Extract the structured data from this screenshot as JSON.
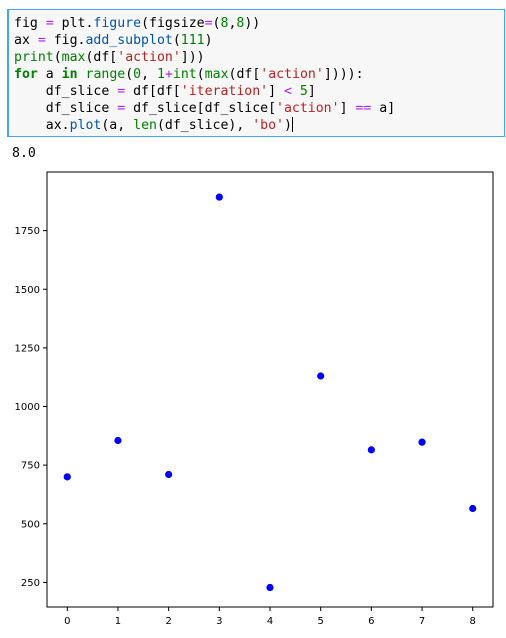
{
  "cell": {
    "lines": [
      [
        {
          "t": "fig "
        },
        {
          "t": "=",
          "c": "op"
        },
        {
          "t": " plt."
        },
        {
          "t": "figure",
          "c": "meth"
        },
        {
          "t": "(figsize"
        },
        {
          "t": "=",
          "c": "op"
        },
        {
          "t": "("
        },
        {
          "t": "8",
          "c": "num"
        },
        {
          "t": ","
        },
        {
          "t": "8",
          "c": "num"
        },
        {
          "t": "))"
        }
      ],
      [
        {
          "t": "ax "
        },
        {
          "t": "=",
          "c": "op"
        },
        {
          "t": " fig."
        },
        {
          "t": "add_subplot",
          "c": "meth"
        },
        {
          "t": "("
        },
        {
          "t": "111",
          "c": "num"
        },
        {
          "t": ")"
        }
      ],
      [
        {
          "t": "print",
          "c": "fn"
        },
        {
          "t": "("
        },
        {
          "t": "max",
          "c": "fn"
        },
        {
          "t": "(df["
        },
        {
          "t": "'action'",
          "c": "str"
        },
        {
          "t": "]))"
        }
      ],
      [
        {
          "t": "for",
          "c": "kw"
        },
        {
          "t": " a "
        },
        {
          "t": "in",
          "c": "kw"
        },
        {
          "t": " "
        },
        {
          "t": "range",
          "c": "fn"
        },
        {
          "t": "("
        },
        {
          "t": "0",
          "c": "num"
        },
        {
          "t": ", "
        },
        {
          "t": "1",
          "c": "num"
        },
        {
          "t": "+",
          "c": "op"
        },
        {
          "t": "int",
          "c": "fn"
        },
        {
          "t": "("
        },
        {
          "t": "max",
          "c": "fn"
        },
        {
          "t": "(df["
        },
        {
          "t": "'action'",
          "c": "str"
        },
        {
          "t": "]))):"
        }
      ],
      [
        {
          "t": "    df_slice "
        },
        {
          "t": "=",
          "c": "op"
        },
        {
          "t": " df[df["
        },
        {
          "t": "'iteration'",
          "c": "str"
        },
        {
          "t": "] "
        },
        {
          "t": "<",
          "c": "op"
        },
        {
          "t": " "
        },
        {
          "t": "5",
          "c": "num"
        },
        {
          "t": "]"
        }
      ],
      [
        {
          "t": "    df_slice "
        },
        {
          "t": "=",
          "c": "op"
        },
        {
          "t": " df_slice[df_slice["
        },
        {
          "t": "'action'",
          "c": "str"
        },
        {
          "t": "] "
        },
        {
          "t": "==",
          "c": "op"
        },
        {
          "t": " a]"
        }
      ],
      [
        {
          "t": "    ax."
        },
        {
          "t": "plot",
          "c": "meth"
        },
        {
          "t": "("
        },
        {
          "t": "a, "
        },
        {
          "t": "len",
          "c": "fn"
        },
        {
          "t": "(df_slice), "
        },
        {
          "t": "'bo'",
          "c": "str"
        },
        {
          "t": ")"
        }
      ]
    ]
  },
  "output": {
    "text": "8.0"
  },
  "chart_data": {
    "type": "scatter",
    "x": [
      0,
      1,
      2,
      3,
      4,
      5,
      6,
      7,
      8
    ],
    "y": [
      700,
      855,
      710,
      1893,
      228,
      1130,
      815,
      848,
      565
    ],
    "xticks": [
      "0",
      "1",
      "2",
      "3",
      "4",
      "5",
      "6",
      "7",
      "8"
    ],
    "yticks": [
      "250",
      "500",
      "750",
      "1000",
      "1250",
      "1500",
      "1750"
    ],
    "xlim": [
      -0.4,
      8.4
    ],
    "ylim": [
      145,
      2000
    ],
    "marker_color": "#0000ff",
    "grid": false
  }
}
